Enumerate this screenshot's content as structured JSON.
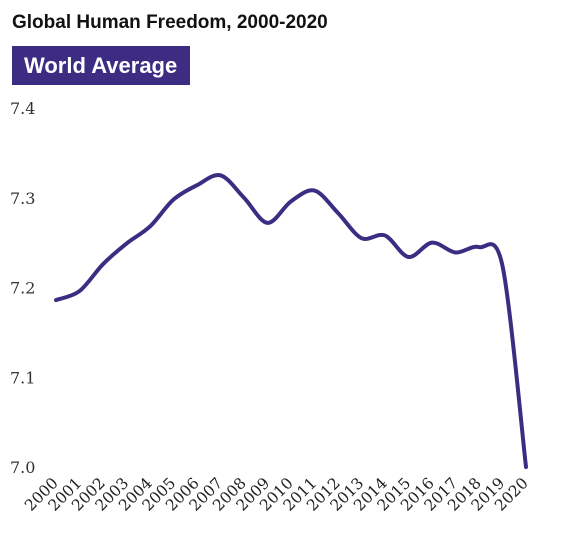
{
  "title": "Global Human Freedom, 2000-2020",
  "banner": {
    "label": "World Average",
    "color": "#3d2d82"
  },
  "chart_data": {
    "type": "line",
    "title": "Global Human Freedom, 2000-2020",
    "subtitle": "World Average",
    "xlabel": "",
    "ylabel": "",
    "x": [
      "2000",
      "2001",
      "2002",
      "2003",
      "2004",
      "2005",
      "2006",
      "2007",
      "2008",
      "2009",
      "2010",
      "2011",
      "2012",
      "2013",
      "2014",
      "2015",
      "2016",
      "2017",
      "2018",
      "2019",
      "2020"
    ],
    "series": [
      {
        "values": [
          7.186,
          7.196,
          7.226,
          7.249,
          7.268,
          7.298,
          7.314,
          7.325,
          7.3,
          7.272,
          7.296,
          7.308,
          7.283,
          7.255,
          7.258,
          7.234,
          7.25,
          7.239,
          7.245,
          7.224,
          7.0
        ],
        "color": "#3d2d82"
      }
    ],
    "ylim": [
      7.0,
      7.4
    ],
    "yticks": [
      "7.0",
      "7.1",
      "7.2",
      "7.3",
      "7.4"
    ],
    "grid": false,
    "legend": "none"
  }
}
